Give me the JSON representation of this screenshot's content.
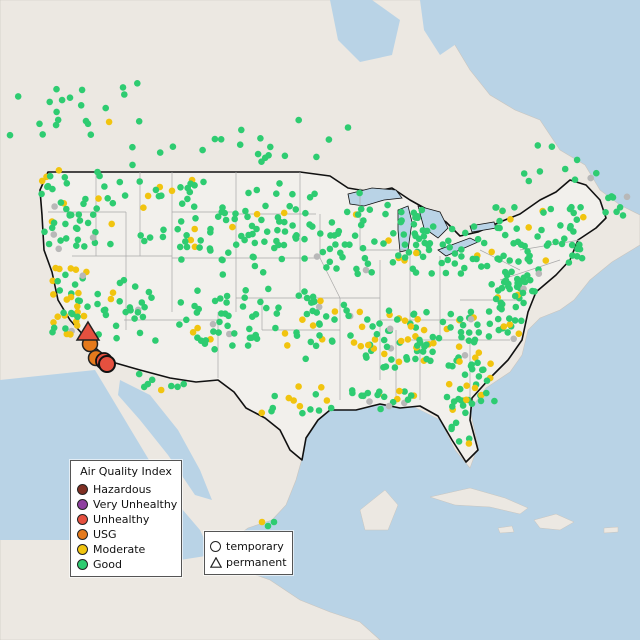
{
  "legend": {
    "title": "Air Quality Index",
    "items": [
      {
        "label": "Hazardous",
        "color": "#7e2f22"
      },
      {
        "label": "Very Unhealthy",
        "color": "#8f3fa0"
      },
      {
        "label": "Unhealthy",
        "color": "#e5503f"
      },
      {
        "label": "USG",
        "color": "#e57a1c"
      },
      {
        "label": "Moderate",
        "color": "#f1c40f"
      },
      {
        "label": "Good",
        "color": "#2ecc71"
      }
    ]
  },
  "site_type_legend": {
    "temporary": "temporary",
    "permanent": "permanent"
  },
  "colors": {
    "ocean": "#b9d3e6",
    "land": "#ece8e2",
    "us_land": "#f2f0ec",
    "border": "#111111",
    "state_line": "#a8a8a8",
    "inactive_site": "#b8b8b8"
  }
}
